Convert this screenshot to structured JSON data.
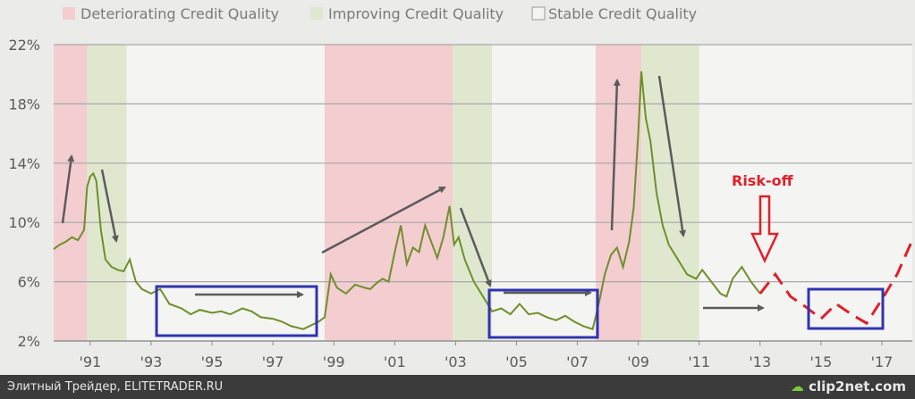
{
  "legend": [
    {
      "label": "Deteriorating Credit Quality",
      "color": "#f3cdd0"
    },
    {
      "label": "Improving Credit Quality",
      "color": "#dfe8cf"
    },
    {
      "label": "Stable Credit Quality",
      "color": "#f4f4f2"
    }
  ],
  "annotation": {
    "risk_off": "Risk-off"
  },
  "footer": {
    "credit": "Элитный Трейдер, ELITETRADER.RU",
    "logo": "clip2net.com"
  },
  "colors": {
    "series": "#6f8f2a",
    "forecast": "#e0202a",
    "box": "#2f33b0",
    "arrow": "#5b5b5b"
  },
  "chart_data": {
    "type": "line",
    "ylim": [
      2,
      22
    ],
    "yticks": [
      2,
      6,
      10,
      14,
      18,
      22
    ],
    "ytick_labels": [
      "2%",
      "6%",
      "10%",
      "14%",
      "18%",
      "22%"
    ],
    "xlim": [
      1989.8,
      2018.0
    ],
    "xticks": [
      1991,
      1993,
      1995,
      1997,
      1999,
      2001,
      2003,
      2005,
      2007,
      2009,
      2011,
      2013,
      2015,
      2017
    ],
    "xtick_labels": [
      "'91",
      "'93",
      "'95",
      "'97",
      "'99",
      "'01",
      "'03",
      "'05",
      "'07",
      "'09",
      "'11",
      "'13",
      "'15",
      "'17"
    ],
    "regions": [
      {
        "type": "deteriorating",
        "start": 1989.8,
        "end": 1990.9
      },
      {
        "type": "improving",
        "start": 1990.9,
        "end": 1992.2
      },
      {
        "type": "stable",
        "start": 1992.2,
        "end": 1998.7
      },
      {
        "type": "deteriorating",
        "start": 1998.7,
        "end": 2002.9
      },
      {
        "type": "improving",
        "start": 2002.9,
        "end": 2004.2
      },
      {
        "type": "stable",
        "start": 2004.2,
        "end": 2007.6
      },
      {
        "type": "deteriorating",
        "start": 2007.6,
        "end": 2009.1
      },
      {
        "type": "improving",
        "start": 2009.1,
        "end": 2011.0
      }
    ],
    "series": [
      {
        "x": [
          1989.8,
          1990.0,
          1990.2,
          1990.4,
          1990.6,
          1990.8,
          1990.9,
          1991.0,
          1991.1,
          1991.2,
          1991.35,
          1991.5,
          1991.7,
          1991.9,
          1992.1,
          1992.3,
          1992.5,
          1992.7,
          1993.0,
          1993.3,
          1993.6,
          1994.0,
          1994.3,
          1994.6,
          1995.0,
          1995.3,
          1995.6,
          1996.0,
          1996.3,
          1996.6,
          1997.0,
          1997.3,
          1997.6,
          1998.0,
          1998.3,
          1998.5,
          1998.7,
          1998.9,
          1999.1,
          1999.4,
          1999.7,
          2000.0,
          2000.2,
          2000.4,
          2000.6,
          2000.8,
          2001.0,
          2001.2,
          2001.4,
          2001.6,
          2001.8,
          2002.0,
          2002.2,
          2002.4,
          2002.6,
          2002.8,
          2002.95,
          2003.1,
          2003.3,
          2003.6,
          2003.9,
          2004.2,
          2004.5,
          2004.8,
          2005.1,
          2005.4,
          2005.7,
          2006.0,
          2006.3,
          2006.6,
          2006.9,
          2007.2,
          2007.5,
          2007.7,
          2007.9,
          2008.1,
          2008.3,
          2008.5,
          2008.7,
          2008.85,
          2009.0,
          2009.1,
          2009.25,
          2009.4,
          2009.6,
          2009.8,
          2010.0,
          2010.3,
          2010.6,
          2010.9,
          2011.1,
          2011.4,
          2011.7,
          2011.9,
          2012.1,
          2012.4,
          2012.7,
          2013.0
        ],
        "values": [
          8.2,
          8.5,
          8.7,
          9.0,
          8.8,
          9.5,
          12.4,
          13.1,
          13.3,
          12.8,
          9.5,
          7.5,
          7.0,
          6.8,
          6.7,
          7.5,
          6.0,
          5.5,
          5.2,
          5.5,
          4.5,
          4.2,
          3.8,
          4.1,
          3.9,
          4.0,
          3.8,
          4.2,
          4.0,
          3.6,
          3.5,
          3.3,
          3.0,
          2.8,
          3.1,
          3.3,
          3.6,
          6.5,
          5.6,
          5.2,
          5.8,
          5.6,
          5.5,
          5.9,
          6.2,
          6.0,
          8.0,
          9.8,
          7.2,
          8.3,
          8.0,
          9.8,
          8.7,
          7.6,
          9.0,
          11.1,
          8.5,
          9.0,
          7.5,
          6.0,
          5.0,
          4.0,
          4.2,
          3.8,
          4.5,
          3.8,
          3.9,
          3.6,
          3.4,
          3.7,
          3.3,
          3.0,
          2.8,
          4.5,
          6.5,
          7.8,
          8.3,
          7.0,
          8.7,
          11.0,
          16.0,
          20.2,
          17.0,
          15.5,
          12.0,
          9.8,
          8.5,
          7.5,
          6.5,
          6.2,
          6.8,
          6.0,
          5.2,
          5.0,
          6.2,
          7.0,
          6.0,
          5.2
        ]
      },
      {
        "x": [
          2013.0,
          2013.5,
          2014.0,
          2014.5,
          2015.0,
          2015.5,
          2016.0,
          2016.5,
          2017.0,
          2017.5,
          2018.0
        ],
        "values": [
          5.2,
          6.5,
          5.0,
          4.3,
          3.5,
          4.5,
          3.8,
          3.2,
          4.8,
          6.5,
          8.8
        ]
      }
    ]
  }
}
